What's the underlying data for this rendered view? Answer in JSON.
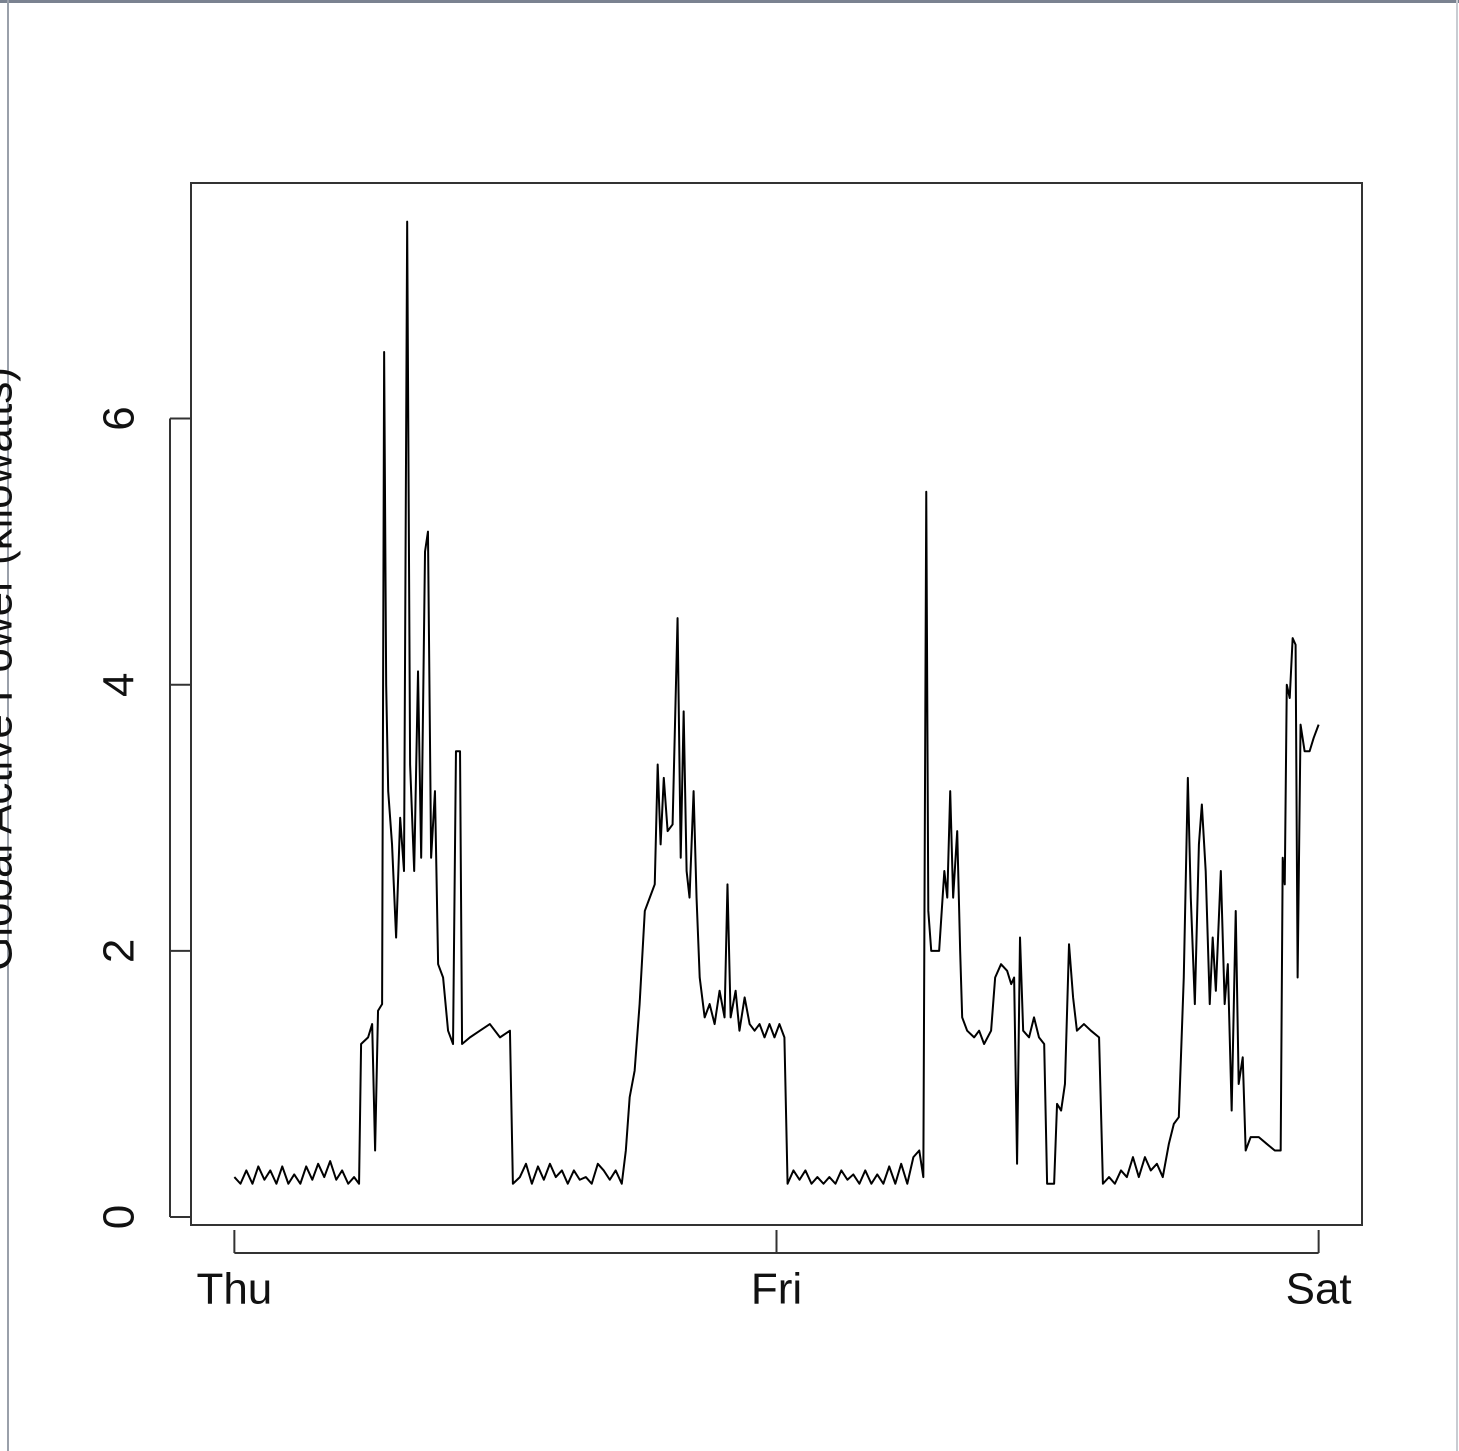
{
  "chart_data": {
    "type": "line",
    "ylabel": "Global Active Power (kilowatts)",
    "color": "#000000",
    "xlim": [
      -1.92,
      49.92
    ],
    "ylim": [
      -0.06,
      7.77
    ],
    "xticks": [
      {
        "value": 0,
        "label": "Thu"
      },
      {
        "value": 24,
        "label": "Fri"
      },
      {
        "value": 48,
        "label": "Sat"
      }
    ],
    "yticks": [
      0,
      2,
      4,
      6
    ],
    "grid": false,
    "x": [
      0,
      0.27,
      0.53,
      0.8,
      1.06,
      1.33,
      1.59,
      1.86,
      2.12,
      2.39,
      2.65,
      2.92,
      3.18,
      3.45,
      3.71,
      3.98,
      4.24,
      4.51,
      4.77,
      5.04,
      5.3,
      5.52,
      5.61,
      5.92,
      6.1,
      6.23,
      6.36,
      6.54,
      6.63,
      6.72,
      6.81,
      6.98,
      7.16,
      7.34,
      7.51,
      7.65,
      7.78,
      7.96,
      8.13,
      8.27,
      8.44,
      8.57,
      8.71,
      8.88,
      9.02,
      9.24,
      9.46,
      9.68,
      9.81,
      9.99,
      10.08,
      10.43,
      10.87,
      11.31,
      11.76,
      12.2,
      12.33,
      12.64,
      12.91,
      13.17,
      13.44,
      13.7,
      13.97,
      14.23,
      14.5,
      14.76,
      15.03,
      15.29,
      15.56,
      15.82,
      16.09,
      16.35,
      16.62,
      16.88,
      17.15,
      17.33,
      17.5,
      17.72,
      17.94,
      18.17,
      18.39,
      18.61,
      18.74,
      18.87,
      19.01,
      19.18,
      19.4,
      19.62,
      19.76,
      19.89,
      20.02,
      20.15,
      20.33,
      20.46,
      20.6,
      20.82,
      21.04,
      21.26,
      21.48,
      21.7,
      21.83,
      21.97,
      22.19,
      22.36,
      22.59,
      22.81,
      23.03,
      23.25,
      23.47,
      23.69,
      23.91,
      24.13,
      24.35,
      24.49,
      24.75,
      25.02,
      25.28,
      25.55,
      25.81,
      26.08,
      26.34,
      26.61,
      26.87,
      27.14,
      27.4,
      27.67,
      27.93,
      28.2,
      28.46,
      28.73,
      28.99,
      29.26,
      29.52,
      29.79,
      30.06,
      30.32,
      30.5,
      30.63,
      30.72,
      30.85,
      31.2,
      31.43,
      31.56,
      31.69,
      31.82,
      32.0,
      32.13,
      32.22,
      32.44,
      32.75,
      32.97,
      33.19,
      33.5,
      33.68,
      33.94,
      34.21,
      34.39,
      34.52,
      34.65,
      34.78,
      34.92,
      35.18,
      35.4,
      35.62,
      35.85,
      35.98,
      36.29,
      36.42,
      36.6,
      36.77,
      36.95,
      37.13,
      37.3,
      37.61,
      37.92,
      38.28,
      38.45,
      38.72,
      38.98,
      39.25,
      39.51,
      39.78,
      40.04,
      40.31,
      40.57,
      40.84,
      41.1,
      41.37,
      41.59,
      41.81,
      42.03,
      42.21,
      42.34,
      42.52,
      42.7,
      42.83,
      43.0,
      43.18,
      43.31,
      43.45,
      43.67,
      43.84,
      43.98,
      44.15,
      44.33,
      44.46,
      44.64,
      44.77,
      44.99,
      45.35,
      45.7,
      46.06,
      46.32,
      46.41,
      46.5,
      46.59,
      46.72,
      46.85,
      46.98,
      47.07,
      47.2,
      47.38,
      47.6,
      47.78,
      48.0
    ],
    "values": [
      0.3,
      0.25,
      0.35,
      0.25,
      0.38,
      0.28,
      0.35,
      0.25,
      0.38,
      0.25,
      0.32,
      0.25,
      0.38,
      0.28,
      0.4,
      0.3,
      0.42,
      0.28,
      0.35,
      0.25,
      0.3,
      0.25,
      1.3,
      1.35,
      1.45,
      0.5,
      1.55,
      1.6,
      6.5,
      4.0,
      3.2,
      2.8,
      2.1,
      3.0,
      2.6,
      7.48,
      3.4,
      2.6,
      4.1,
      2.7,
      5.0,
      5.15,
      2.7,
      3.2,
      1.9,
      1.8,
      1.4,
      1.3,
      3.5,
      3.5,
      1.3,
      1.35,
      1.4,
      1.45,
      1.35,
      1.4,
      0.25,
      0.3,
      0.4,
      0.25,
      0.38,
      0.28,
      0.4,
      0.3,
      0.35,
      0.25,
      0.35,
      0.28,
      0.3,
      0.25,
      0.4,
      0.35,
      0.28,
      0.35,
      0.25,
      0.5,
      0.9,
      1.1,
      1.6,
      2.3,
      2.4,
      2.5,
      3.4,
      2.8,
      3.3,
      2.9,
      2.95,
      4.5,
      2.7,
      3.8,
      2.6,
      2.4,
      3.2,
      2.4,
      1.8,
      1.5,
      1.6,
      1.45,
      1.7,
      1.5,
      2.5,
      1.5,
      1.7,
      1.4,
      1.65,
      1.45,
      1.4,
      1.45,
      1.35,
      1.45,
      1.35,
      1.45,
      1.35,
      0.25,
      0.35,
      0.28,
      0.35,
      0.25,
      0.3,
      0.25,
      0.3,
      0.25,
      0.35,
      0.28,
      0.32,
      0.25,
      0.35,
      0.25,
      0.32,
      0.25,
      0.38,
      0.25,
      0.4,
      0.25,
      0.45,
      0.5,
      0.3,
      5.45,
      2.3,
      2.0,
      2.0,
      2.6,
      2.4,
      3.2,
      2.4,
      2.9,
      2.0,
      1.5,
      1.4,
      1.35,
      1.4,
      1.3,
      1.4,
      1.8,
      1.9,
      1.85,
      1.75,
      1.8,
      0.4,
      2.1,
      1.4,
      1.35,
      1.5,
      1.35,
      1.3,
      0.25,
      0.25,
      0.85,
      0.8,
      1.0,
      2.05,
      1.65,
      1.4,
      1.45,
      1.4,
      1.35,
      0.25,
      0.3,
      0.25,
      0.35,
      0.3,
      0.45,
      0.3,
      0.45,
      0.35,
      0.4,
      0.3,
      0.55,
      0.7,
      0.75,
      1.8,
      3.3,
      2.4,
      1.6,
      2.8,
      3.1,
      2.6,
      1.6,
      2.1,
      1.7,
      2.6,
      1.6,
      1.9,
      0.8,
      2.3,
      1.0,
      1.2,
      0.5,
      0.6,
      0.6,
      0.55,
      0.5,
      0.5,
      2.7,
      2.5,
      4.0,
      3.9,
      4.35,
      4.3,
      1.8,
      3.7,
      3.5,
      3.5,
      3.6,
      3.7
    ]
  }
}
